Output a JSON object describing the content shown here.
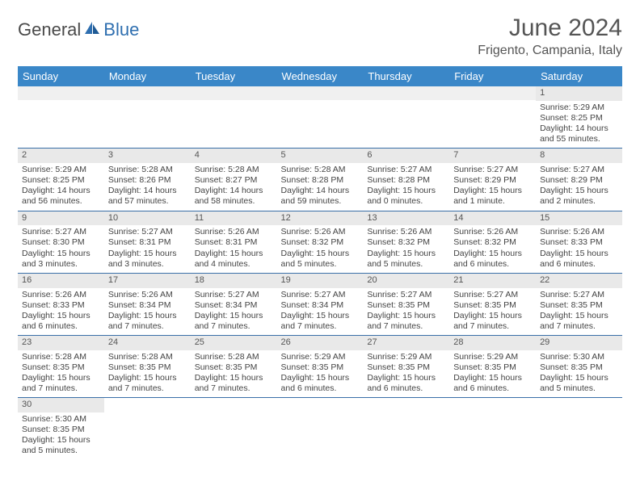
{
  "logo": {
    "part1": "General",
    "part2": "Blue"
  },
  "title": "June 2024",
  "location": "Frigento, Campania, Italy",
  "colors": {
    "header_bg": "#3a87c8",
    "header_text": "#ffffff",
    "daynum_bg": "#e9e9e9",
    "row_border": "#3a6fa8",
    "logo_gray": "#4a4a4a",
    "logo_blue": "#2f6fb0"
  },
  "weekdays": [
    "Sunday",
    "Monday",
    "Tuesday",
    "Wednesday",
    "Thursday",
    "Friday",
    "Saturday"
  ],
  "weeks": [
    [
      {
        "n": "",
        "sr": "",
        "ss": "",
        "dl": ""
      },
      {
        "n": "",
        "sr": "",
        "ss": "",
        "dl": ""
      },
      {
        "n": "",
        "sr": "",
        "ss": "",
        "dl": ""
      },
      {
        "n": "",
        "sr": "",
        "ss": "",
        "dl": ""
      },
      {
        "n": "",
        "sr": "",
        "ss": "",
        "dl": ""
      },
      {
        "n": "",
        "sr": "",
        "ss": "",
        "dl": ""
      },
      {
        "n": "1",
        "sr": "Sunrise: 5:29 AM",
        "ss": "Sunset: 8:25 PM",
        "dl": "Daylight: 14 hours and 55 minutes."
      }
    ],
    [
      {
        "n": "2",
        "sr": "Sunrise: 5:29 AM",
        "ss": "Sunset: 8:25 PM",
        "dl": "Daylight: 14 hours and 56 minutes."
      },
      {
        "n": "3",
        "sr": "Sunrise: 5:28 AM",
        "ss": "Sunset: 8:26 PM",
        "dl": "Daylight: 14 hours and 57 minutes."
      },
      {
        "n": "4",
        "sr": "Sunrise: 5:28 AM",
        "ss": "Sunset: 8:27 PM",
        "dl": "Daylight: 14 hours and 58 minutes."
      },
      {
        "n": "5",
        "sr": "Sunrise: 5:28 AM",
        "ss": "Sunset: 8:28 PM",
        "dl": "Daylight: 14 hours and 59 minutes."
      },
      {
        "n": "6",
        "sr": "Sunrise: 5:27 AM",
        "ss": "Sunset: 8:28 PM",
        "dl": "Daylight: 15 hours and 0 minutes."
      },
      {
        "n": "7",
        "sr": "Sunrise: 5:27 AM",
        "ss": "Sunset: 8:29 PM",
        "dl": "Daylight: 15 hours and 1 minute."
      },
      {
        "n": "8",
        "sr": "Sunrise: 5:27 AM",
        "ss": "Sunset: 8:29 PM",
        "dl": "Daylight: 15 hours and 2 minutes."
      }
    ],
    [
      {
        "n": "9",
        "sr": "Sunrise: 5:27 AM",
        "ss": "Sunset: 8:30 PM",
        "dl": "Daylight: 15 hours and 3 minutes."
      },
      {
        "n": "10",
        "sr": "Sunrise: 5:27 AM",
        "ss": "Sunset: 8:31 PM",
        "dl": "Daylight: 15 hours and 3 minutes."
      },
      {
        "n": "11",
        "sr": "Sunrise: 5:26 AM",
        "ss": "Sunset: 8:31 PM",
        "dl": "Daylight: 15 hours and 4 minutes."
      },
      {
        "n": "12",
        "sr": "Sunrise: 5:26 AM",
        "ss": "Sunset: 8:32 PM",
        "dl": "Daylight: 15 hours and 5 minutes."
      },
      {
        "n": "13",
        "sr": "Sunrise: 5:26 AM",
        "ss": "Sunset: 8:32 PM",
        "dl": "Daylight: 15 hours and 5 minutes."
      },
      {
        "n": "14",
        "sr": "Sunrise: 5:26 AM",
        "ss": "Sunset: 8:32 PM",
        "dl": "Daylight: 15 hours and 6 minutes."
      },
      {
        "n": "15",
        "sr": "Sunrise: 5:26 AM",
        "ss": "Sunset: 8:33 PM",
        "dl": "Daylight: 15 hours and 6 minutes."
      }
    ],
    [
      {
        "n": "16",
        "sr": "Sunrise: 5:26 AM",
        "ss": "Sunset: 8:33 PM",
        "dl": "Daylight: 15 hours and 6 minutes."
      },
      {
        "n": "17",
        "sr": "Sunrise: 5:26 AM",
        "ss": "Sunset: 8:34 PM",
        "dl": "Daylight: 15 hours and 7 minutes."
      },
      {
        "n": "18",
        "sr": "Sunrise: 5:27 AM",
        "ss": "Sunset: 8:34 PM",
        "dl": "Daylight: 15 hours and 7 minutes."
      },
      {
        "n": "19",
        "sr": "Sunrise: 5:27 AM",
        "ss": "Sunset: 8:34 PM",
        "dl": "Daylight: 15 hours and 7 minutes."
      },
      {
        "n": "20",
        "sr": "Sunrise: 5:27 AM",
        "ss": "Sunset: 8:35 PM",
        "dl": "Daylight: 15 hours and 7 minutes."
      },
      {
        "n": "21",
        "sr": "Sunrise: 5:27 AM",
        "ss": "Sunset: 8:35 PM",
        "dl": "Daylight: 15 hours and 7 minutes."
      },
      {
        "n": "22",
        "sr": "Sunrise: 5:27 AM",
        "ss": "Sunset: 8:35 PM",
        "dl": "Daylight: 15 hours and 7 minutes."
      }
    ],
    [
      {
        "n": "23",
        "sr": "Sunrise: 5:28 AM",
        "ss": "Sunset: 8:35 PM",
        "dl": "Daylight: 15 hours and 7 minutes."
      },
      {
        "n": "24",
        "sr": "Sunrise: 5:28 AM",
        "ss": "Sunset: 8:35 PM",
        "dl": "Daylight: 15 hours and 7 minutes."
      },
      {
        "n": "25",
        "sr": "Sunrise: 5:28 AM",
        "ss": "Sunset: 8:35 PM",
        "dl": "Daylight: 15 hours and 7 minutes."
      },
      {
        "n": "26",
        "sr": "Sunrise: 5:29 AM",
        "ss": "Sunset: 8:35 PM",
        "dl": "Daylight: 15 hours and 6 minutes."
      },
      {
        "n": "27",
        "sr": "Sunrise: 5:29 AM",
        "ss": "Sunset: 8:35 PM",
        "dl": "Daylight: 15 hours and 6 minutes."
      },
      {
        "n": "28",
        "sr": "Sunrise: 5:29 AM",
        "ss": "Sunset: 8:35 PM",
        "dl": "Daylight: 15 hours and 6 minutes."
      },
      {
        "n": "29",
        "sr": "Sunrise: 5:30 AM",
        "ss": "Sunset: 8:35 PM",
        "dl": "Daylight: 15 hours and 5 minutes."
      }
    ],
    [
      {
        "n": "30",
        "sr": "Sunrise: 5:30 AM",
        "ss": "Sunset: 8:35 PM",
        "dl": "Daylight: 15 hours and 5 minutes."
      },
      {
        "n": "",
        "sr": "",
        "ss": "",
        "dl": ""
      },
      {
        "n": "",
        "sr": "",
        "ss": "",
        "dl": ""
      },
      {
        "n": "",
        "sr": "",
        "ss": "",
        "dl": ""
      },
      {
        "n": "",
        "sr": "",
        "ss": "",
        "dl": ""
      },
      {
        "n": "",
        "sr": "",
        "ss": "",
        "dl": ""
      },
      {
        "n": "",
        "sr": "",
        "ss": "",
        "dl": ""
      }
    ]
  ]
}
